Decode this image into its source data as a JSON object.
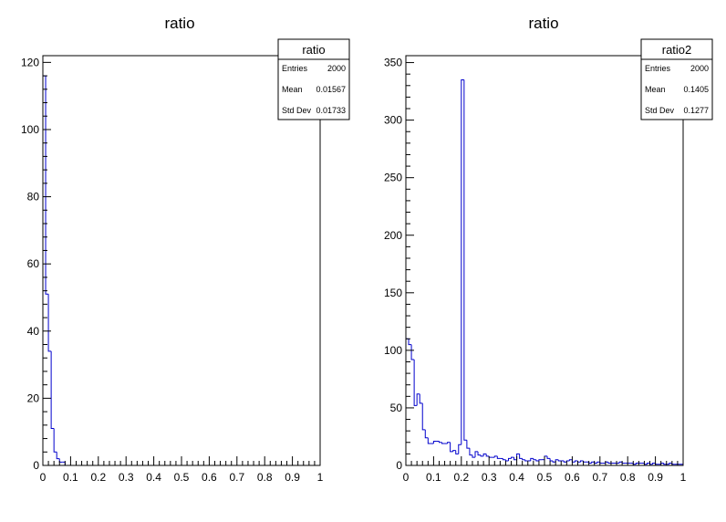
{
  "chart_data": [
    {
      "type": "bar",
      "title": "ratio",
      "xlabel": "",
      "ylabel": "",
      "xlim": [
        0,
        1
      ],
      "ylim": [
        0,
        122
      ],
      "x_ticks": [
        0,
        0.1,
        0.2,
        0.3,
        0.4,
        0.5,
        0.6,
        0.7,
        0.8,
        0.9,
        1
      ],
      "x_tick_labels": [
        "0",
        "0.1",
        "0.2",
        "0.3",
        "0.4",
        "0.5",
        "0.6",
        "0.7",
        "0.8",
        "0.9",
        "1"
      ],
      "y_ticks": [
        0,
        20,
        40,
        60,
        80,
        100,
        120
      ],
      "y_tick_labels": [
        "0",
        "20",
        "40",
        "60",
        "80",
        "100",
        "120"
      ],
      "bin_width": 0.01,
      "values": [
        116,
        51,
        34,
        11,
        4,
        2,
        1,
        1,
        0,
        0,
        0,
        0,
        0,
        0,
        0,
        0,
        0,
        0,
        0,
        0,
        0,
        0,
        0,
        0,
        0,
        0,
        0,
        0,
        0,
        0,
        0,
        0,
        0,
        0,
        0,
        0,
        0,
        0,
        0,
        0,
        0,
        0,
        0,
        0,
        0,
        0,
        0,
        0,
        0,
        0,
        0,
        0,
        0,
        0,
        0,
        0,
        0,
        0,
        0,
        0,
        0,
        0,
        0,
        0,
        0,
        0,
        0,
        0,
        0,
        0,
        0,
        0,
        0,
        0,
        0,
        0,
        0,
        0,
        0,
        0,
        0,
        0,
        0,
        0,
        0,
        0,
        0,
        0,
        0,
        0,
        0,
        0,
        0,
        0,
        0,
        0,
        0,
        0,
        0,
        0
      ],
      "line_color": "#0000cc",
      "stats": {
        "name": "ratio",
        "rows": [
          {
            "label": "Entries",
            "value": "2000"
          },
          {
            "label": "Mean",
            "value": "0.01567"
          },
          {
            "label": "Std Dev",
            "value": "0.01733"
          }
        ]
      }
    },
    {
      "type": "bar",
      "title": "ratio",
      "xlabel": "",
      "ylabel": "",
      "xlim": [
        0,
        1
      ],
      "ylim": [
        0,
        356
      ],
      "x_ticks": [
        0,
        0.1,
        0.2,
        0.3,
        0.4,
        0.5,
        0.6,
        0.7,
        0.8,
        0.9,
        1
      ],
      "x_tick_labels": [
        "0",
        "0.1",
        "0.2",
        "0.3",
        "0.4",
        "0.5",
        "0.6",
        "0.7",
        "0.8",
        "0.9",
        "1"
      ],
      "y_ticks": [
        0,
        50,
        100,
        150,
        200,
        250,
        300,
        350
      ],
      "y_tick_labels": [
        "0",
        "50",
        "100",
        "150",
        "200",
        "250",
        "300",
        "350"
      ],
      "bin_width": 0.01,
      "values": [
        110,
        105,
        92,
        52,
        62,
        54,
        31,
        24,
        19,
        19,
        21,
        21,
        20,
        19,
        19,
        20,
        12,
        13,
        10,
        18,
        335,
        22,
        15,
        9,
        7,
        12,
        9,
        8,
        10,
        8,
        7,
        7,
        8,
        6,
        6,
        5,
        4,
        6,
        7,
        5,
        10,
        6,
        5,
        4,
        4,
        6,
        5,
        4,
        5,
        5,
        8,
        6,
        4,
        3,
        5,
        4,
        4,
        3,
        4,
        5,
        3,
        4,
        3,
        4,
        3,
        3,
        2,
        3,
        2,
        3,
        2,
        2,
        3,
        2,
        2,
        2,
        2,
        3,
        2,
        2,
        2,
        2,
        1,
        2,
        2,
        2,
        1,
        2,
        1,
        2,
        1,
        1,
        2,
        1,
        1,
        2,
        1,
        1,
        1,
        1
      ],
      "line_color": "#0000cc",
      "stats": {
        "name": "ratio2",
        "rows": [
          {
            "label": "Entries",
            "value": "2000"
          },
          {
            "label": "Mean",
            "value": "0.1405"
          },
          {
            "label": "Std Dev",
            "value": "0.1277"
          }
        ]
      }
    }
  ]
}
